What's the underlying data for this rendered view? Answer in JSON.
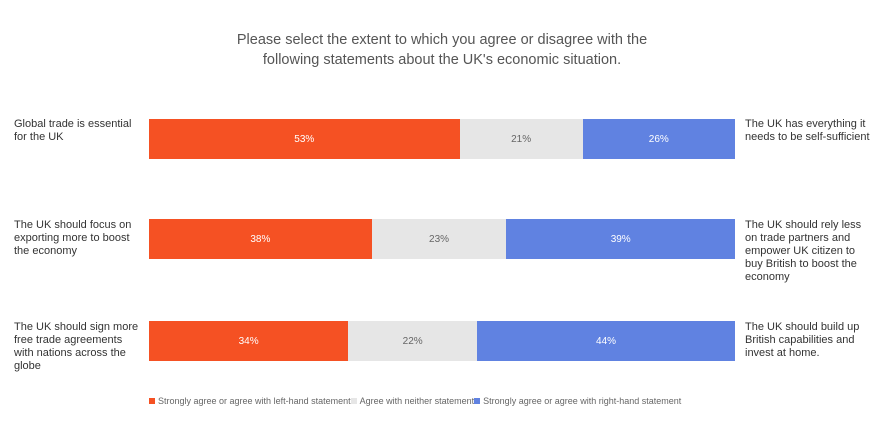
{
  "title_lines": [
    "Please select the extent to which you agree or disagree with the",
    "following statements about the UK's economic situation."
  ],
  "colors": {
    "left": "#f55123",
    "neither": "#e6e6e6",
    "right": "#6082e1",
    "left_text": "#ffffff",
    "neither_text": "#666666",
    "right_text": "#ffffff"
  },
  "chart_data": {
    "type": "bar",
    "orientation": "horizontal",
    "stacked": true,
    "normalized_percent": true,
    "categories": [
      {
        "left": "Global trade is essential for the UK",
        "right": "The UK has everything it needs to be self-sufficient"
      },
      {
        "left": "The UK should focus on exporting more to boost the economy",
        "right": "The UK should rely less on trade partners and empower UK citizen to buy British to boost the economy"
      },
      {
        "left": "The UK should sign more free trade agreements with nations across the globe",
        "right": "The UK should build up British capabilities and invest at home."
      }
    ],
    "series": [
      {
        "name": "Strongly agree or agree with left-hand statement",
        "values": [
          53,
          38,
          34
        ],
        "labels": [
          "53%",
          "38%",
          "34%"
        ]
      },
      {
        "name": "Agree with neither statement",
        "values": [
          21,
          23,
          22
        ],
        "labels": [
          "21%",
          "23%",
          "22%"
        ]
      },
      {
        "name": "Strongly agree or agree with right-hand statement",
        "values": [
          26,
          39,
          44
        ],
        "labels": [
          "26%",
          "39%",
          "44%"
        ]
      }
    ],
    "legend_position": "bottom",
    "grid": false
  }
}
